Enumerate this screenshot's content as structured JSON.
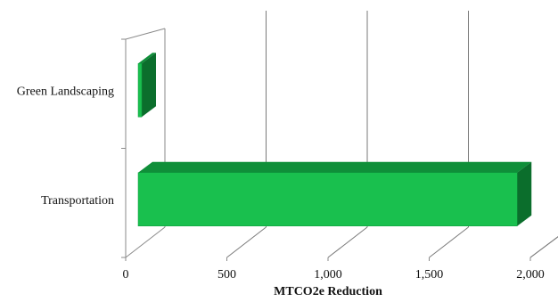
{
  "chart_data": {
    "type": "bar",
    "orientation": "horizontal",
    "style": "3d",
    "categories": [
      "Transportation",
      "Green Landscaping"
    ],
    "values": [
      1935,
      45
    ],
    "xlabel": "MTCO2e Reduction",
    "ylabel": "",
    "xlim": [
      0,
      2000
    ],
    "xticks": [
      "0",
      "500",
      "1,000",
      "1,500",
      "2,000"
    ],
    "grid": true,
    "legend": "none"
  },
  "colors": {
    "bar_front": "#19c04e",
    "bar_top": "#0f8f39",
    "bar_side": "#0b6e2c",
    "grid": "#7a7a7a",
    "axis": "#8a8a8a"
  }
}
